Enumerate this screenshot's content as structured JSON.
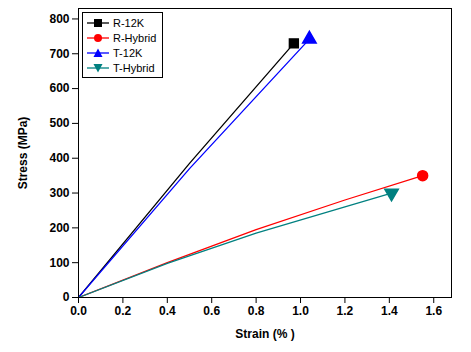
{
  "chart_data": {
    "type": "line",
    "x_label": "Strain (% )",
    "y_label": "Stress (MPa)",
    "xlim": [
      0,
      1.68
    ],
    "xticks": [
      {
        "value": 0,
        "label": "0.0"
      },
      0.2,
      0.4,
      0.6,
      0.8,
      {
        "value": 1,
        "label": "1.0"
      },
      1.2,
      1.4,
      1.6
    ],
    "ylim": [
      0,
      830
    ],
    "yticks": [
      0,
      100,
      200,
      300,
      400,
      500,
      600,
      700,
      800
    ],
    "grid": false,
    "legend": "top-left",
    "series": [
      {
        "name": "R-12K",
        "color": "#000000",
        "marker": "square",
        "x": [
          0,
          0.5,
          0.97
        ],
        "values": [
          0,
          385,
          730
        ]
      },
      {
        "name": "R-Hybrid",
        "color": "#ff0000",
        "marker": "circle",
        "x": [
          0,
          0.4,
          0.8,
          1.2,
          1.55
        ],
        "values": [
          0,
          100,
          195,
          280,
          350
        ]
      },
      {
        "name": "T-12K",
        "color": "#0000ff",
        "marker": "triangle",
        "x": [
          0,
          0.5,
          1.04
        ],
        "values": [
          0,
          370,
          742
        ]
      },
      {
        "name": "T-Hybrid",
        "color": "#008080",
        "marker": "triangle-down",
        "x": [
          0,
          0.4,
          0.8,
          1.2,
          1.41
        ],
        "values": [
          0,
          98,
          185,
          260,
          300
        ]
      }
    ]
  }
}
